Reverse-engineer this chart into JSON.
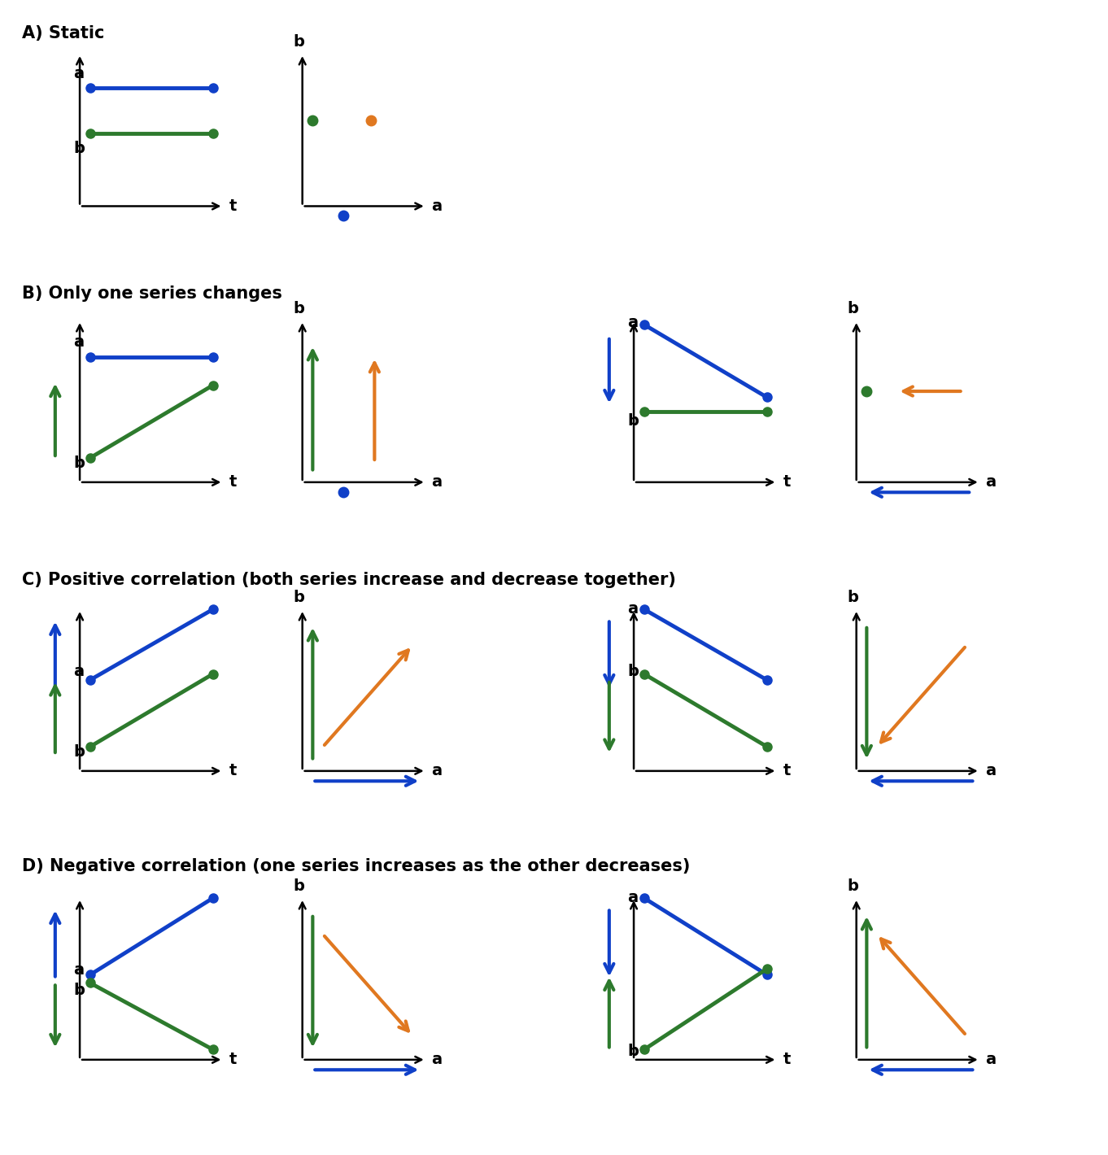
{
  "title_A": "A) Static",
  "title_B": "B) Only one series changes",
  "title_C": "C) Positive correlation (both series increase and decrease together)",
  "title_D": "D) Negative correlation (one series increases as the other decreases)",
  "blue": "#1040c8",
  "green": "#2d7a2d",
  "orange": "#e07820",
  "black": "#000000",
  "bg": "#ffffff",
  "title_fontsize": 15,
  "label_fontsize": 14
}
